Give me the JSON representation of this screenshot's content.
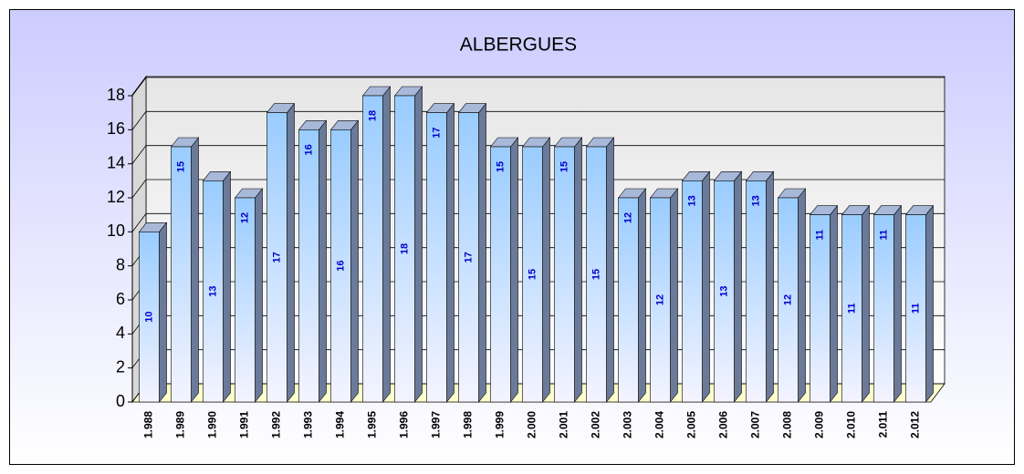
{
  "chart_data": {
    "type": "bar3d",
    "title": "ALBERGUES",
    "categories": [
      "1.988",
      "1.989",
      "1.990",
      "1.991",
      "1.992",
      "1.993",
      "1.994",
      "1.995",
      "1.996",
      "1.997",
      "1.998",
      "1.999",
      "2.000",
      "2.001",
      "2.002",
      "2.003",
      "2.004",
      "2.005",
      "2.006",
      "2.007",
      "2.008",
      "2.009",
      "2.010",
      "2.011",
      "2.012"
    ],
    "values": [
      10,
      15,
      13,
      12,
      17,
      16,
      16,
      18,
      18,
      17,
      17,
      15,
      15,
      15,
      15,
      12,
      12,
      13,
      13,
      13,
      12,
      11,
      11,
      11,
      11
    ],
    "color": "#99ccff",
    "ylim": [
      0,
      18
    ],
    "yticks": [
      0,
      2,
      4,
      6,
      8,
      10,
      12,
      14,
      16,
      18
    ],
    "grid": true
  }
}
